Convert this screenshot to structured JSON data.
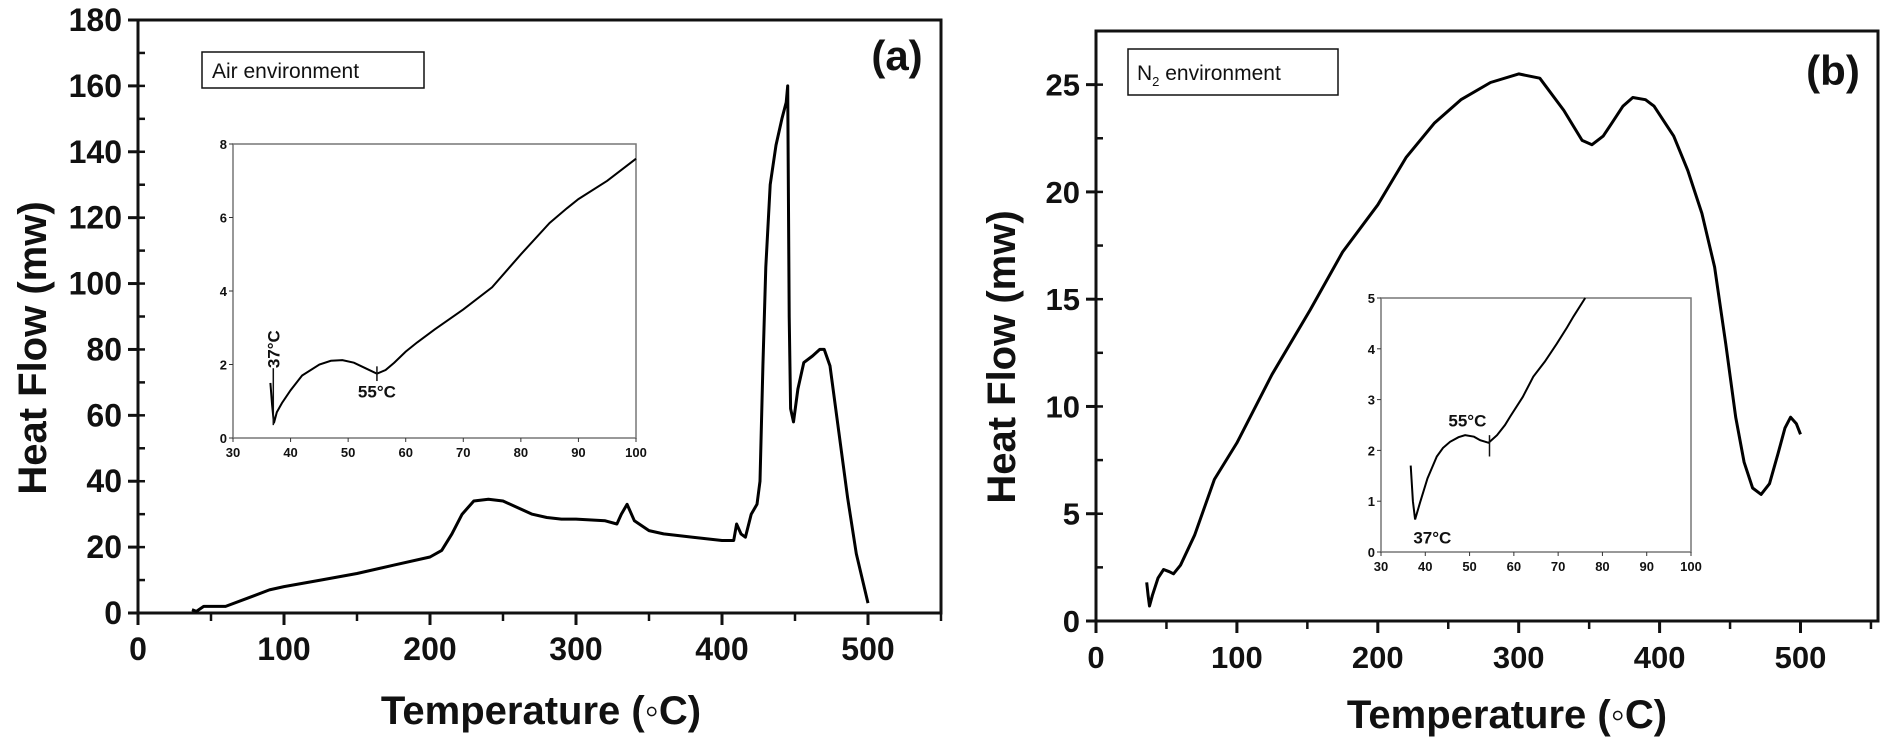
{
  "chart_data": [
    {
      "type": "line",
      "panel_label": "(a)",
      "legend_box": "Air environment",
      "xlabel": "Temperature (◦C)",
      "ylabel": "Heat Flow (mw)",
      "xlim": [
        0,
        550
      ],
      "ylim": [
        0,
        180
      ],
      "xticks": [
        0,
        100,
        200,
        300,
        400,
        500
      ],
      "yticks": [
        0,
        20,
        40,
        60,
        80,
        100,
        120,
        140,
        160,
        180
      ],
      "series": [
        {
          "name": "Air",
          "x": [
            37,
            40,
            45,
            60,
            75,
            90,
            100,
            125,
            150,
            175,
            200,
            208,
            215,
            222,
            230,
            240,
            250,
            260,
            270,
            280,
            290,
            300,
            320,
            328,
            331,
            335,
            340,
            350,
            360,
            380,
            400,
            408,
            410,
            413,
            416,
            420,
            424,
            426,
            428,
            430,
            433,
            437,
            441,
            444,
            445,
            446,
            447,
            449,
            452,
            456,
            462,
            467,
            470,
            474,
            480,
            486,
            492,
            500
          ],
          "y": [
            1,
            0.5,
            2,
            2,
            4.5,
            7,
            8,
            10,
            12,
            14.5,
            17,
            19,
            24,
            30,
            34,
            34.5,
            34,
            32,
            30,
            29,
            28.5,
            28.5,
            28,
            27,
            30,
            33,
            28,
            25,
            24,
            23,
            22,
            22,
            27,
            24,
            23,
            30,
            33,
            40,
            75,
            105,
            130,
            142,
            150,
            155,
            160,
            90,
            62,
            58,
            68,
            76,
            78,
            80,
            80,
            75,
            55,
            35,
            18,
            3
          ]
        }
      ],
      "inset": {
        "xlim": [
          30,
          100
        ],
        "ylim": [
          0,
          8
        ],
        "xticks": [
          30,
          40,
          50,
          60,
          70,
          80,
          90,
          100
        ],
        "yticks": [
          0,
          2,
          4,
          6,
          8
        ],
        "x": [
          36.5,
          36.8,
          37.1,
          37.6,
          38.5,
          40,
          42,
          45,
          47,
          49,
          51,
          53,
          55,
          56.5,
          58,
          60,
          62,
          65,
          70,
          75,
          80,
          85,
          88,
          90,
          95,
          100
        ],
        "y": [
          1.5,
          0.9,
          0.4,
          0.7,
          0.95,
          1.3,
          1.7,
          2.0,
          2.1,
          2.12,
          2.05,
          1.9,
          1.75,
          1.85,
          2.05,
          2.35,
          2.6,
          2.95,
          3.5,
          4.1,
          5.0,
          5.85,
          6.25,
          6.5,
          7.0,
          7.6
        ],
        "annotations": [
          {
            "text": "37°C",
            "x": 37
          },
          {
            "text": "55°C",
            "x": 55
          }
        ]
      }
    },
    {
      "type": "line",
      "panel_label": "(b)",
      "legend_box_main": "N",
      "legend_box_sub": "2",
      "legend_box_rest": " environment",
      "xlabel": "Temperature (◦C)",
      "ylabel": "Heat Flow (mw)",
      "xlim": [
        0,
        555
      ],
      "ylim": [
        0,
        27.5
      ],
      "xticks": [
        0,
        100,
        200,
        300,
        400,
        500
      ],
      "yticks": [
        0,
        5,
        10,
        15,
        20,
        25
      ],
      "series": [
        {
          "name": "N2",
          "x": [
            36,
            37,
            38,
            40,
            44,
            48,
            52,
            55,
            60,
            70,
            84,
            100,
            125,
            152,
            175,
            200,
            220,
            240,
            259,
            280,
            300,
            315,
            332,
            345,
            352,
            360,
            366,
            374,
            381,
            390,
            396,
            410,
            420,
            430,
            439,
            447,
            454,
            460,
            466,
            472,
            478,
            484,
            489,
            493,
            497,
            500
          ],
          "y": [
            1.8,
            1.2,
            0.7,
            1.2,
            2.0,
            2.4,
            2.3,
            2.2,
            2.6,
            4.0,
            6.6,
            8.3,
            11.5,
            14.5,
            17.2,
            19.4,
            21.6,
            23.2,
            24.3,
            25.1,
            25.5,
            25.3,
            23.8,
            22.4,
            22.2,
            22.6,
            23.2,
            24.0,
            24.4,
            24.3,
            24.0,
            22.6,
            21.0,
            19.0,
            16.5,
            12.9,
            9.5,
            7.4,
            6.2,
            5.9,
            6.4,
            7.8,
            9.0,
            9.5,
            9.2,
            8.7
          ]
        }
      ],
      "inset": {
        "xlim": [
          30,
          100
        ],
        "ylim": [
          0,
          5
        ],
        "xticks": [
          30,
          40,
          50,
          60,
          70,
          80,
          90,
          100
        ],
        "yticks": [
          0,
          1,
          2,
          3,
          4,
          5
        ],
        "x": [
          36.7,
          37.2,
          37.7,
          38.8,
          40.5,
          42.6,
          44,
          45.6,
          47.5,
          49,
          51,
          52.4,
          54.3,
          56.2,
          58,
          59.2,
          62,
          64.4,
          67,
          69.7,
          72,
          73.5,
          76.1
        ],
        "y": [
          1.7,
          1.0,
          0.64,
          0.97,
          1.45,
          1.88,
          2.05,
          2.17,
          2.26,
          2.3,
          2.27,
          2.2,
          2.15,
          2.3,
          2.5,
          2.67,
          3.05,
          3.45,
          3.75,
          4.1,
          4.42,
          4.64,
          5.0
        ],
        "annotations": [
          {
            "text": "37°C",
            "x": 37
          },
          {
            "text": "55°C",
            "x": 55
          }
        ]
      }
    }
  ],
  "colors": {
    "line": "#000000",
    "inset_frame": "#777777"
  }
}
